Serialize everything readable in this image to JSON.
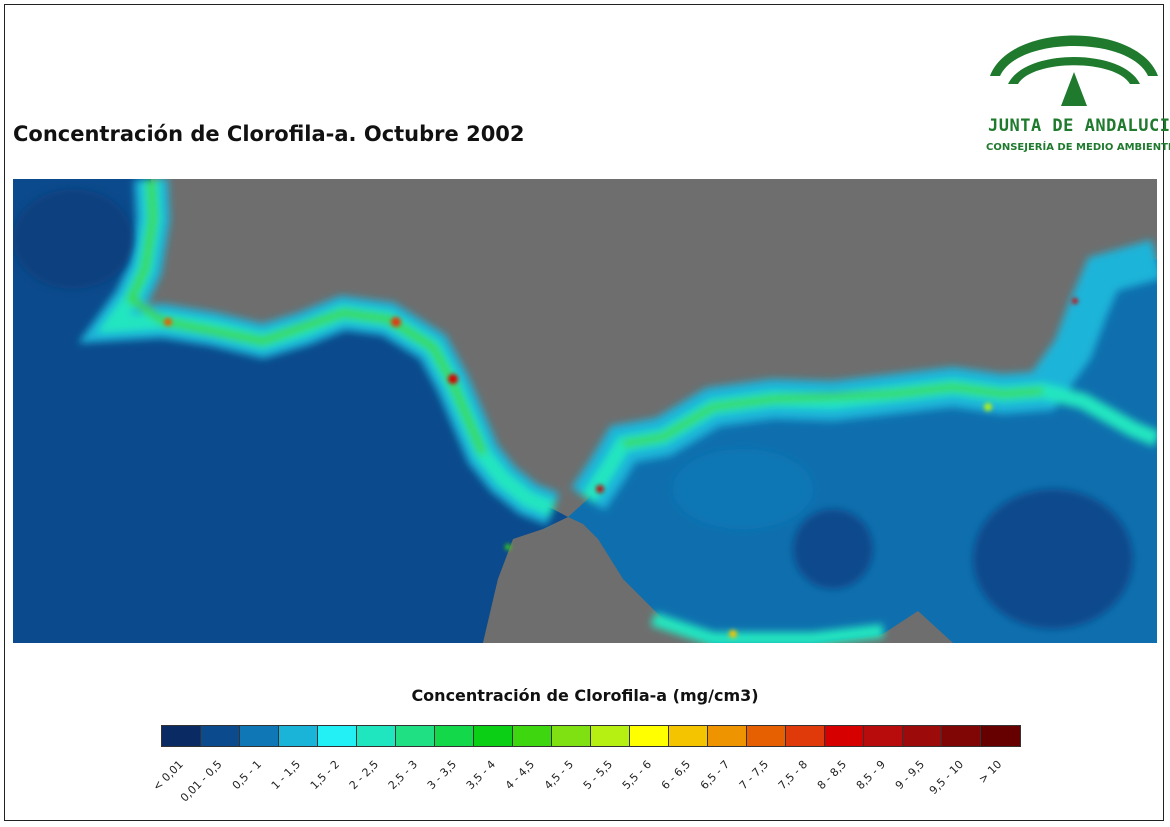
{
  "title": "Concentración de Clorofila-a. Octubre 2002",
  "logo": {
    "name": "JUNTA DE ANDALUCIA",
    "department": "CONSEJERÍA DE MEDIO AMBIENTE",
    "color": "#1f7a2e"
  },
  "map": {
    "land_color": "#6e6e6e",
    "open_sea_color": "#0a4a8a"
  },
  "legend": {
    "title": "Concentración de Clorofila-a (mg/cm3)",
    "classes": [
      {
        "label": "< 0,01",
        "color": "#0a2a63"
      },
      {
        "label": "0,01 - 0,5",
        "color": "#0b4a8c"
      },
      {
        "label": "0,5 - 1",
        "color": "#0f77b5"
      },
      {
        "label": "1 - 1,5",
        "color": "#1ab4d9"
      },
      {
        "label": "1,5 - 2",
        "color": "#22f0f5"
      },
      {
        "label": "2 - 2,5",
        "color": "#20e6c0"
      },
      {
        "label": "2,5 - 3",
        "color": "#1fe083"
      },
      {
        "label": "3 - 3,5",
        "color": "#13d94a"
      },
      {
        "label": "3,5 - 4",
        "color": "#0acf14"
      },
      {
        "label": "4 - 4,5",
        "color": "#3ed60e"
      },
      {
        "label": "4,5 - 5",
        "color": "#7fe012"
      },
      {
        "label": "5 - 5,5",
        "color": "#b5f012"
      },
      {
        "label": "5,5 - 6",
        "color": "#ffff00"
      },
      {
        "label": "6 - 6,5",
        "color": "#f5c400"
      },
      {
        "label": "6,5 - 7",
        "color": "#ee9400"
      },
      {
        "label": "7 - 7,5",
        "color": "#e65f00"
      },
      {
        "label": "7,5 - 8",
        "color": "#e03a0a"
      },
      {
        "label": "8 - 8,5",
        "color": "#d60000"
      },
      {
        "label": "8,5 - 9",
        "color": "#b80b0b"
      },
      {
        "label": "9 - 9,5",
        "color": "#9c0a0a"
      },
      {
        "label": "9,5 - 10",
        "color": "#800606"
      },
      {
        "label": "> 10",
        "color": "#660000"
      }
    ]
  }
}
